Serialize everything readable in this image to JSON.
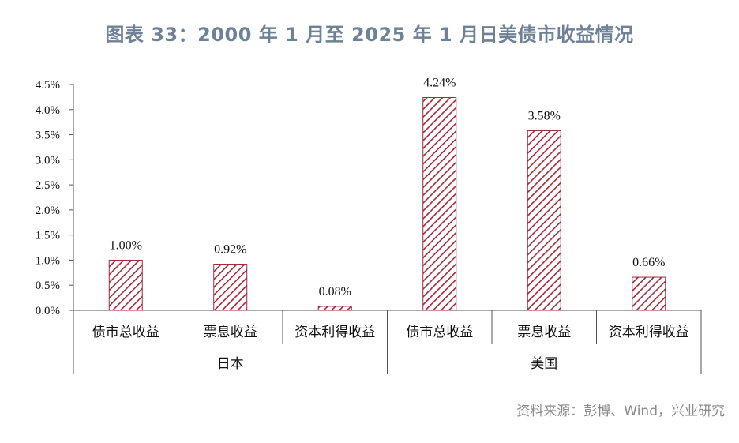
{
  "title": "图表 33：2000 年 1 月至 2025 年 1 月日美债市收益情况",
  "source": "资料来源：彭博、Wind，兴业研究",
  "chart_data": {
    "type": "bar",
    "groups": [
      {
        "name": "日本",
        "categories": [
          "债市总收益",
          "票息收益",
          "资本利得收益"
        ],
        "values": [
          1.0,
          0.92,
          0.08
        ]
      },
      {
        "name": "美国",
        "categories": [
          "债市总收益",
          "票息收益",
          "资本利得收益"
        ],
        "values": [
          4.24,
          3.58,
          0.66
        ]
      }
    ],
    "data_labels": [
      "1.00%",
      "0.92%",
      "0.08%",
      "4.24%",
      "3.58%",
      "0.66%"
    ],
    "yticks": [
      "0.0%",
      "0.5%",
      "1.0%",
      "1.5%",
      "2.0%",
      "2.5%",
      "3.0%",
      "3.5%",
      "4.0%",
      "4.5%"
    ],
    "ylim": [
      0,
      4.5
    ],
    "grid": false,
    "legend": "none",
    "colors": {
      "bar_hatch": "#a0293a",
      "axis": "#555555"
    }
  }
}
